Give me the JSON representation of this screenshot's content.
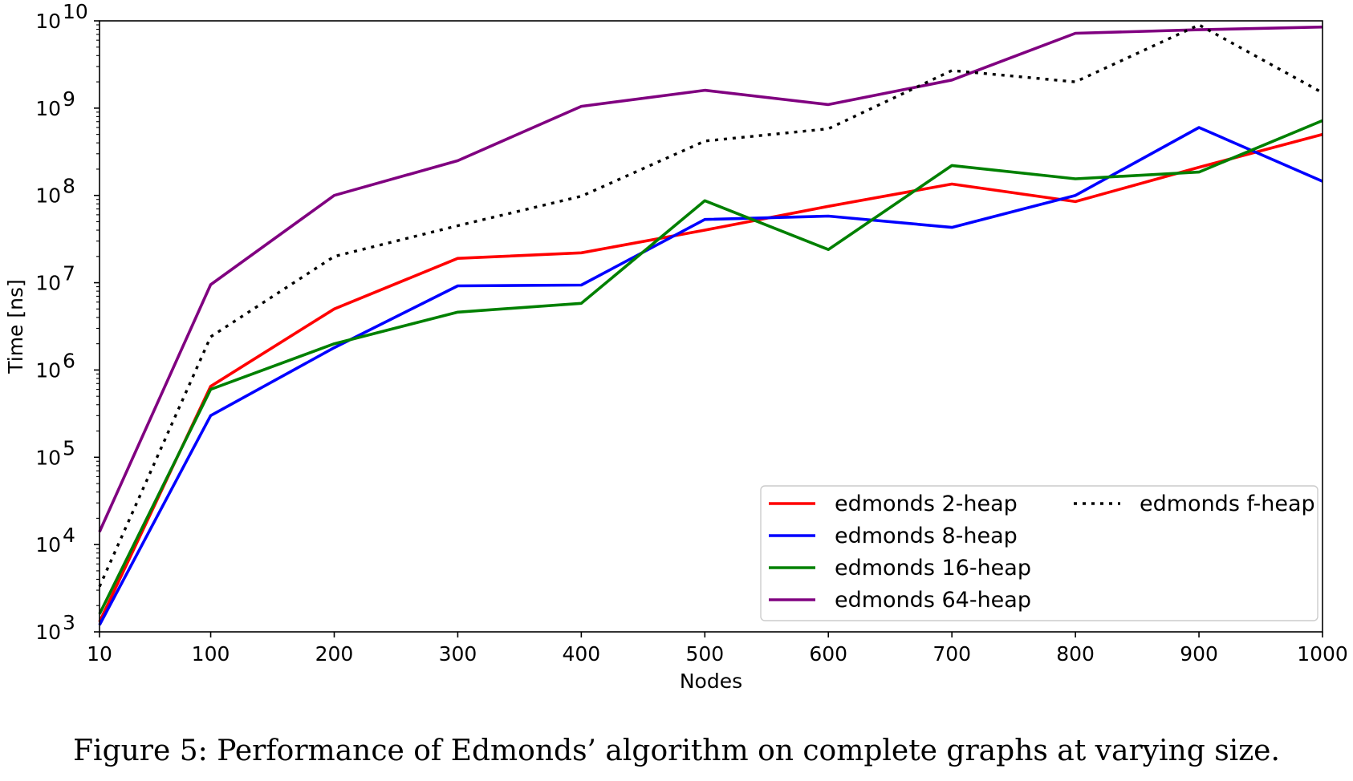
{
  "caption": "Figure 5:  Performance of Edmonds’ algorithm on complete graphs at varying size.",
  "chart_data": {
    "type": "line",
    "title": "",
    "xlabel": "Nodes",
    "ylabel": "Time [ns]",
    "x": [
      10,
      100,
      200,
      300,
      400,
      500,
      600,
      700,
      800,
      900,
      1000
    ],
    "xticks": [
      "10",
      "100",
      "200",
      "300",
      "400",
      "500",
      "600",
      "700",
      "800",
      "900",
      "1000"
    ],
    "xlim": [
      10,
      1000
    ],
    "ylim": [
      1000,
      10000000000
    ],
    "yscale": "log",
    "yticks": [
      {
        "base": "10",
        "exp": "3"
      },
      {
        "base": "10",
        "exp": "4"
      },
      {
        "base": "10",
        "exp": "5"
      },
      {
        "base": "10",
        "exp": "6"
      },
      {
        "base": "10",
        "exp": "7"
      },
      {
        "base": "10",
        "exp": "8"
      },
      {
        "base": "10",
        "exp": "9"
      },
      {
        "base": "10",
        "exp": "10"
      }
    ],
    "grid": false,
    "legend_position": "lower-right",
    "series": [
      {
        "name": "edmonds 2-heap",
        "color": "#ff0000",
        "dash": "solid",
        "values": [
          1300,
          650000,
          5000000,
          19000000,
          22000000,
          40000000,
          75000000,
          135000000,
          85000000,
          210000000,
          500000000
        ]
      },
      {
        "name": "edmonds 8-heap",
        "color": "#0000ff",
        "dash": "solid",
        "values": [
          1200,
          300000,
          1800000,
          9200000,
          9400000,
          53000000,
          58000000,
          43000000,
          100000000,
          600000000,
          145000000
        ]
      },
      {
        "name": "edmonds 16-heap",
        "color": "#008000",
        "dash": "solid",
        "values": [
          1600,
          600000,
          2000000,
          4600000,
          5800000,
          87000000,
          24000000,
          220000000,
          155000000,
          185000000,
          720000000
        ]
      },
      {
        "name": "edmonds 64-heap",
        "color": "#800080",
        "dash": "solid",
        "values": [
          14000,
          9500000,
          100000000,
          250000000,
          1050000000,
          1600000000,
          1100000000,
          2100000000,
          7200000000,
          7900000000,
          8500000000
        ]
      },
      {
        "name": "edmonds f-heap",
        "color": "#000000",
        "dash": "dotted",
        "values": [
          3300,
          2400000,
          20000000,
          45000000,
          98000000,
          420000000,
          580000000,
          2700000000,
          2000000000,
          9000000000,
          1500000000
        ]
      }
    ]
  }
}
